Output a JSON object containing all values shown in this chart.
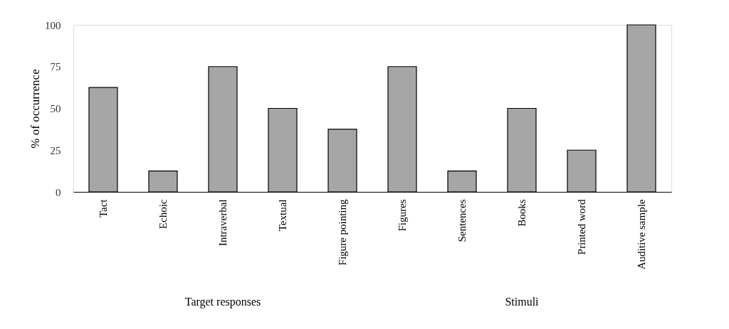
{
  "chart_data": {
    "type": "bar",
    "ylabel": "% of occurrence",
    "categories": [
      "Tact",
      "Echoic",
      "Intraverbal",
      "Textual",
      "Figure pointing",
      "Figures",
      "Sentences",
      "Books",
      "Printed word",
      "Auditive sample"
    ],
    "values": [
      62.5,
      12.5,
      75,
      50,
      37.5,
      75,
      12.5,
      50,
      25,
      100
    ],
    "color": "#a6a6a6",
    "ylim": [
      0,
      100
    ],
    "yticks": [
      0,
      25,
      50,
      75,
      100
    ],
    "grid": false,
    "annotations": [
      "Target responses",
      "Stimuli"
    ]
  }
}
